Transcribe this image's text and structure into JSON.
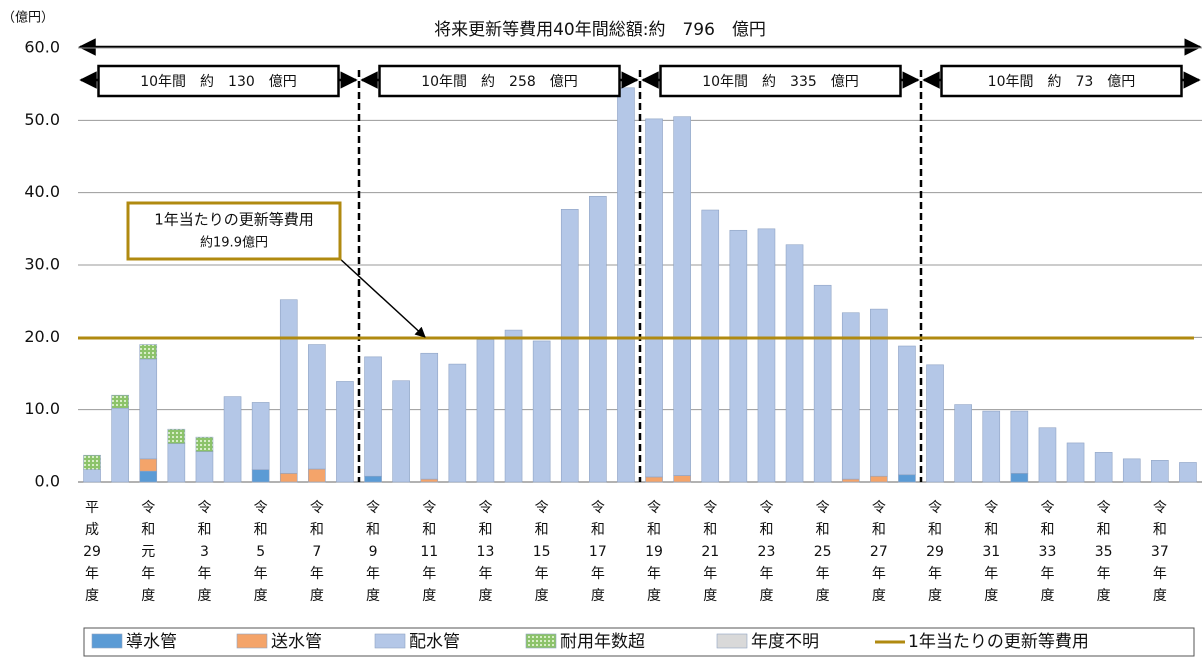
{
  "chart_data": {
    "type": "bar",
    "stacked": true,
    "title": "将来更新等費用40年間総額:約　796　億円",
    "y_unit_label": "（億円）",
    "periods": [
      "10年間　約　130　億円",
      "10年間　約　258　億円",
      "10年間　約　335　億円",
      "10年間　約　73　億円"
    ],
    "annotation": [
      "1年当たりの更新等費用",
      "約19.9億円"
    ],
    "categories": [
      "平成29年度",
      null,
      "令和元年度",
      null,
      "令和3年度",
      null,
      "令和5年度",
      null,
      "令和7年度",
      null,
      "令和9年度",
      null,
      "令和11年度",
      null,
      "令和13年度",
      null,
      "令和15年度",
      null,
      "令和17年度",
      null,
      "令和19年度",
      null,
      "令和21年度",
      null,
      "令和23年度",
      null,
      "令和25年度",
      null,
      "令和27年度",
      null,
      "令和29年度",
      null,
      "令和31年度",
      null,
      "令和33年度",
      null,
      "令和35年度",
      null,
      "令和37年度",
      null
    ],
    "series": [
      {
        "name": "導水管",
        "color": "#5b9bd5",
        "values": [
          0,
          0,
          1.5,
          0,
          0,
          0,
          1.7,
          0,
          0,
          0,
          0.8,
          0,
          0,
          0,
          0,
          0,
          0,
          0,
          0,
          0,
          0,
          0,
          0,
          0,
          0,
          0,
          0,
          0,
          0,
          1.0,
          0,
          0,
          0,
          1.2,
          0,
          0,
          0,
          0,
          0,
          0
        ]
      },
      {
        "name": "送水管",
        "color": "#f4a46a",
        "values": [
          0,
          0,
          1.7,
          0,
          0,
          0,
          0,
          1.2,
          1.8,
          0,
          0,
          0,
          0.4,
          0,
          0,
          0,
          0,
          0,
          0,
          0,
          0.7,
          0.9,
          0,
          0,
          0,
          0,
          0,
          0.4,
          0.8,
          0,
          0,
          0,
          0,
          0,
          0,
          0,
          0,
          0,
          0,
          0
        ]
      },
      {
        "name": "配水管",
        "color": "#b4c7e7",
        "values": [
          1.7,
          10.2,
          13.8,
          5.3,
          4.2,
          11.8,
          9.3,
          24.0,
          17.2,
          13.9,
          16.5,
          14.0,
          17.4,
          16.3,
          19.7,
          21.0,
          19.5,
          37.7,
          39.5,
          54.5,
          49.5,
          49.6,
          37.6,
          34.8,
          35.0,
          32.8,
          27.2,
          23.0,
          23.1,
          17.8,
          16.2,
          10.7,
          9.8,
          8.6,
          7.5,
          5.4,
          4.1,
          3.2,
          3.0,
          2.7
        ]
      },
      {
        "name": "耐用年数超",
        "color": "#8cc36a",
        "values": [
          2.0,
          1.8,
          2.0,
          2.0,
          2.0,
          0,
          0,
          0,
          0,
          0,
          0,
          0,
          0,
          0,
          0,
          0,
          0,
          0,
          0,
          0,
          0,
          0,
          0,
          0,
          0,
          0,
          0,
          0,
          0,
          0,
          0,
          0,
          0,
          0,
          0,
          0,
          0,
          0,
          0,
          0
        ]
      },
      {
        "name": "年度不明",
        "color": "#d9d9d9",
        "values": [
          0,
          0,
          0,
          0,
          0,
          0,
          0,
          0,
          0,
          0,
          0,
          0,
          0,
          0,
          0,
          0,
          0,
          0,
          0,
          0,
          0,
          0,
          0,
          0,
          0,
          0,
          0,
          0,
          0,
          0,
          0,
          0,
          0,
          0,
          0,
          0,
          0,
          0,
          0,
          0
        ]
      }
    ],
    "average_line": {
      "name": "1年当たりの更新等費用",
      "value": 19.9,
      "color": "#b08a10"
    },
    "ylim": [
      0,
      60
    ],
    "yticks": [
      {
        "value": 0,
        "label": "0.0"
      },
      {
        "value": 10,
        "label": "10.0"
      },
      {
        "value": 20,
        "label": "20.0"
      },
      {
        "value": 30,
        "label": "30.0"
      },
      {
        "value": 40,
        "label": "40.0"
      },
      {
        "value": 50,
        "label": "50.0"
      },
      {
        "value": 60,
        "label": "60.0"
      }
    ],
    "grid": true
  }
}
